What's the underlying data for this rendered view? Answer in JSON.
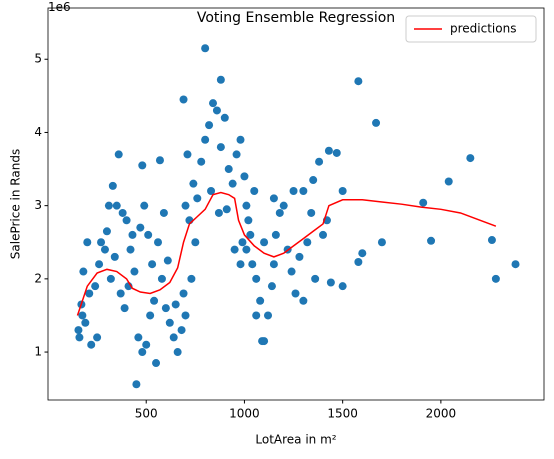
{
  "chart_data": {
    "type": "scatter",
    "title": "Voting Ensemble Regression",
    "x_label": "LotArea in m²",
    "y_label": "SalePrice in Rands",
    "y_offset_label": "1e6",
    "xlim": [
      0,
      2525
    ],
    "ylim": [
      0.345,
      5.7
    ],
    "xticks": [
      500,
      1000,
      1500,
      2000
    ],
    "yticks": [
      1,
      2,
      3,
      4,
      5
    ],
    "legend": "upper right",
    "points": {
      "color": "#1f77b4",
      "x": [
        800,
        880,
        690,
        1580,
        1670,
        2150,
        2040,
        1910,
        1950,
        2260,
        2280,
        2380,
        1600,
        1580,
        1500,
        1440,
        1430,
        1470,
        1500,
        1350,
        450,
        550,
        360,
        330,
        480,
        570,
        160,
        155,
        170,
        175,
        180,
        200,
        220,
        250,
        270,
        300,
        310,
        350,
        380,
        400,
        420,
        440,
        460,
        480,
        500,
        520,
        540,
        560,
        580,
        600,
        620,
        640,
        660,
        680,
        700,
        710,
        720,
        740,
        760,
        780,
        800,
        820,
        840,
        860,
        880,
        900,
        920,
        940,
        960,
        980,
        1000,
        1010,
        1020,
        1040,
        1060,
        1080,
        1100,
        1120,
        1140,
        1160,
        1180,
        1200,
        1220,
        1240,
        1260,
        1280,
        1300,
        1320,
        1340,
        1360,
        1380,
        1400,
        1420,
        1050,
        1100,
        1150,
        1250,
        1060,
        1090,
        980,
        990,
        950,
        750,
        730,
        700,
        690,
        650,
        610,
        590,
        530,
        510,
        490,
        470,
        430,
        410,
        390,
        370,
        340,
        320,
        290,
        260,
        240,
        210,
        190,
        1700,
        1300,
        1150,
        870,
        830,
        910,
        1030,
        1010
      ],
      "y": [
        5.15,
        4.72,
        4.45,
        4.7,
        4.13,
        3.65,
        3.33,
        3.04,
        2.52,
        2.53,
        2.0,
        2.2,
        2.35,
        2.23,
        1.9,
        1.95,
        3.75,
        3.72,
        3.2,
        3.35,
        0.56,
        0.85,
        3.7,
        3.27,
        3.55,
        3.62,
        1.2,
        1.3,
        1.65,
        1.5,
        2.1,
        2.5,
        1.1,
        1.2,
        2.5,
        2.65,
        3.0,
        3.0,
        2.9,
        2.8,
        2.4,
        2.1,
        1.2,
        1.0,
        1.1,
        1.5,
        1.7,
        2.5,
        2.0,
        1.6,
        1.4,
        1.2,
        1.0,
        1.3,
        3.0,
        3.7,
        2.8,
        3.3,
        3.1,
        3.6,
        3.9,
        4.1,
        4.4,
        4.3,
        3.8,
        4.2,
        3.5,
        3.3,
        3.7,
        3.9,
        3.4,
        3.0,
        2.8,
        2.2,
        2.0,
        1.7,
        1.15,
        1.5,
        1.9,
        2.6,
        2.9,
        3.0,
        2.4,
        2.1,
        1.8,
        2.3,
        3.2,
        2.5,
        2.9,
        2.0,
        3.6,
        2.6,
        2.8,
        3.2,
        2.5,
        3.1,
        3.2,
        1.5,
        1.15,
        2.2,
        2.5,
        2.4,
        2.5,
        2.0,
        1.5,
        1.8,
        1.65,
        2.25,
        2.9,
        2.2,
        2.6,
        3.0,
        2.7,
        2.6,
        1.9,
        1.6,
        1.8,
        2.3,
        2.0,
        2.4,
        2.2,
        1.9,
        1.8,
        1.4,
        2.5,
        1.7,
        2.2,
        2.9,
        3.2,
        2.95,
        2.6,
        2.4
      ]
    },
    "series": [
      {
        "name": "predictions",
        "color": "#ff0000",
        "x": [
          150,
          200,
          250,
          300,
          350,
          400,
          430,
          470,
          520,
          570,
          620,
          660,
          690,
          720,
          760,
          800,
          840,
          880,
          920,
          950,
          970,
          1000,
          1050,
          1100,
          1150,
          1200,
          1250,
          1300,
          1350,
          1400,
          1430,
          1500,
          1600,
          1700,
          1800,
          1900,
          2000,
          2100,
          2200,
          2280
        ],
        "values": [
          1.5,
          1.9,
          2.08,
          2.13,
          2.1,
          2.0,
          1.87,
          1.82,
          1.8,
          1.85,
          1.95,
          2.15,
          2.5,
          2.75,
          2.85,
          2.95,
          3.15,
          3.18,
          3.15,
          3.1,
          2.8,
          2.6,
          2.45,
          2.35,
          2.3,
          2.35,
          2.45,
          2.55,
          2.65,
          2.75,
          3.0,
          3.08,
          3.08,
          3.05,
          3.02,
          2.98,
          2.95,
          2.9,
          2.8,
          2.72
        ]
      }
    ]
  }
}
